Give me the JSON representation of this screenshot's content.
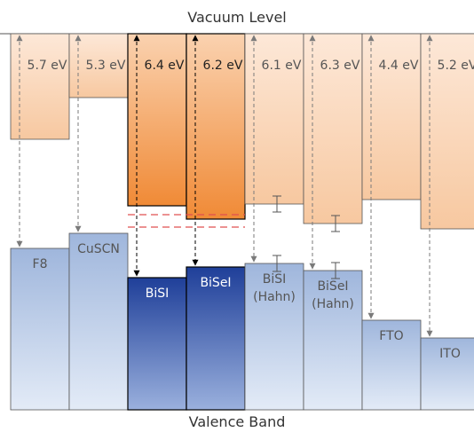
{
  "titles": {
    "top": "Vacuum Level",
    "bottom": "Valence Band"
  },
  "materials": [
    {
      "key": "f8",
      "top_label": "5.7 eV",
      "work_function_eV": 5.7,
      "bottom_label": [
        "F8"
      ],
      "highlight": false
    },
    {
      "key": "cuscn",
      "top_label": "5.3 eV",
      "work_function_eV": 5.3,
      "bottom_label": [
        "CuSCN"
      ],
      "highlight": false
    },
    {
      "key": "bisi",
      "top_label": "6.4 eV",
      "work_function_eV": 6.4,
      "bottom_label": [
        "BiSI"
      ],
      "highlight": true
    },
    {
      "key": "bisei",
      "top_label": "6.2 eV",
      "work_function_eV": 6.2,
      "bottom_label": [
        "BiSeI"
      ],
      "highlight": true
    },
    {
      "key": "bisi-hahn",
      "top_label": "6.1 eV",
      "work_function_eV": 6.1,
      "bottom_label": [
        "BiSI",
        "(Hahn)"
      ],
      "highlight": false,
      "error_bars": true
    },
    {
      "key": "bisei-hahn",
      "top_label": "6.3 eV",
      "work_function_eV": 6.3,
      "bottom_label": [
        "BiSeI",
        "(Hahn)"
      ],
      "highlight": false,
      "error_bars": true
    },
    {
      "key": "fto",
      "top_label": "4.4 eV",
      "work_function_eV": 4.4,
      "bottom_label": [
        "FTO"
      ],
      "highlight": false
    },
    {
      "key": "ito",
      "top_label": "5.2 eV",
      "work_function_eV": 5.2,
      "bottom_label": [
        "ITO"
      ],
      "highlight": false
    }
  ],
  "colors": {
    "upper_light_top": "#fde8d8",
    "upper_light_bottom": "#f7c8a0",
    "upper_dark_top": "#fad2b0",
    "upper_dark_bottom": "#f08a36",
    "lower_light_top": "#9fb6dc",
    "lower_light_bottom": "#e3ebf7",
    "lower_dark_top": "#1f3f99",
    "lower_dark_bottom": "#9ab0dd",
    "outline": "#555555",
    "arrow": "#7a7a7a",
    "arrow_dark": "#000000",
    "dashed_red": "#e05050",
    "text": "#555555",
    "text_dark_box": "#222222",
    "text_dark_lower": "#ffffff"
  }
}
